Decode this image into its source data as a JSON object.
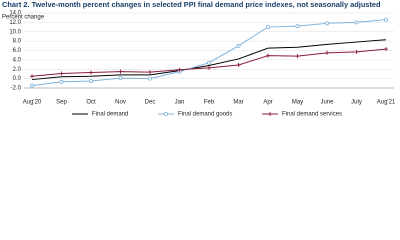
{
  "chart_data": {
    "type": "line",
    "title": "Chart 2. Twelve-month percent changes in selected PPI final demand price indexes, not seasonally adjusted",
    "y_label": "Percent change",
    "categories": [
      "Aug'20",
      "Sep",
      "Oct",
      "Nov",
      "Dec",
      "Jan",
      "Feb",
      "Mar",
      "Apr",
      "May",
      "June",
      "July",
      "Aug'21"
    ],
    "series": [
      {
        "name": "Final demand",
        "color": "#000000",
        "marker": "none",
        "values": [
          -0.2,
          0.4,
          0.5,
          0.8,
          0.8,
          1.7,
          2.8,
          4.2,
          6.5,
          6.7,
          7.3,
          7.8,
          8.3
        ]
      },
      {
        "name": "Final demand goods",
        "color": "#7fb2db",
        "marker": "circle",
        "values": [
          -1.5,
          -0.7,
          -0.5,
          0.1,
          0.0,
          1.5,
          3.4,
          7.0,
          11.0,
          11.2,
          11.8,
          12.0,
          12.6
        ]
      },
      {
        "name": "Final demand services",
        "color": "#8b1a3b",
        "marker": "plus",
        "values": [
          0.5,
          1.1,
          1.3,
          1.5,
          1.4,
          1.9,
          2.3,
          2.9,
          4.9,
          4.8,
          5.5,
          5.7,
          6.3
        ]
      }
    ],
    "ylim": [
      -2,
      14
    ],
    "yticks": [
      {
        "value": -2,
        "label": "-2.0"
      },
      {
        "value": 0,
        "label": "0.0"
      },
      {
        "value": 2,
        "label": "2.0"
      },
      {
        "value": 4,
        "label": "4.0"
      },
      {
        "value": 6,
        "label": "6.0"
      },
      {
        "value": 8,
        "label": "8.0"
      },
      {
        "value": 10,
        "label": "10.0"
      },
      {
        "value": 12,
        "label": "12.0"
      },
      {
        "value": 14,
        "label": "14.0"
      }
    ],
    "grid": true,
    "legend": "bottom"
  }
}
